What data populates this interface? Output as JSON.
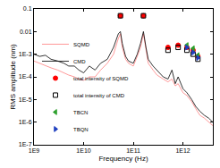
{
  "chart_data": {
    "type": "line",
    "x_label": "Frequency (Hz)",
    "y_label": "RMS amplitude (nm)",
    "log": true,
    "grid": false,
    "legend": "lower left",
    "xlim": [
      1000000000.0,
      4000000000000.0
    ],
    "ylim": [
      1e-07,
      0.1
    ],
    "xticks": [
      {
        "value": 1000000000.0,
        "label": "1E9"
      },
      {
        "value": 10000000000.0,
        "label": "1E10"
      },
      {
        "value": 100000000000.0,
        "label": "1E11"
      },
      {
        "value": 1000000000000.0,
        "label": "1E12"
      }
    ],
    "yticks": [
      {
        "value": 1e-07,
        "label": "1E-7"
      },
      {
        "value": 1e-06,
        "label": "1E-6"
      },
      {
        "value": 1e-05,
        "label": "1E-5"
      },
      {
        "value": 0.0001,
        "label": "1E-4"
      },
      {
        "value": 0.001,
        "label": "1E-3"
      },
      0.01,
      0.1
    ],
    "series": [
      {
        "name": "SQMD",
        "type": "line",
        "color": "#ff7f7f",
        "line_style": "solid",
        "x": [
          1000000000.0,
          1300000000.0,
          1700000000.0,
          2200000000.0,
          3000000000.0,
          4000000000.0,
          5000000000.0,
          6500000000.0,
          8000000000.0,
          10000000000.0,
          13000000000.0,
          17000000000.0,
          22000000000.0,
          30000000000.0,
          40000000000.0,
          50000000000.0,
          55000000000.0,
          60000000000.0,
          70000000000.0,
          80000000000.0,
          100000000000.0,
          120000000000.0,
          140000000000.0,
          160000000000.0,
          180000000000.0,
          200000000000.0,
          250000000000.0,
          300000000000.0,
          400000000000.0,
          500000000000.0,
          600000000000.0,
          700000000000.0,
          800000000000.0,
          1000000000000.0,
          1200000000000.0,
          1500000000000.0,
          1800000000000.0,
          2200000000000.0,
          2700000000000.0,
          3300000000000.0,
          4000000000000.0
        ],
        "values": [
          0.0005,
          0.0004,
          0.0003,
          0.00025,
          0.0002,
          0.00015,
          0.00012,
          0.0001,
          8e-05,
          7e-05,
          0.0001,
          0.0001,
          0.0002,
          0.0004,
          0.001,
          0.005,
          0.008,
          0.002,
          0.0006,
          0.0004,
          0.0003,
          0.0008,
          0.002,
          0.008,
          0.0015,
          0.0004,
          0.0002,
          0.00012,
          8e-05,
          6e-05,
          8e-05,
          4e-05,
          5e-05,
          2e-05,
          1.5e-05,
          8e-06,
          4e-06,
          2e-06,
          1.5e-06,
          1e-06,
          7e-07
        ]
      },
      {
        "name": "CMD",
        "type": "line",
        "color": "#000000",
        "line_style": "solid",
        "x": [
          1000000000.0,
          1300000000.0,
          1700000000.0,
          2200000000.0,
          3000000000.0,
          4000000000.0,
          5000000000.0,
          6500000000.0,
          8000000000.0,
          10000000000.0,
          13000000000.0,
          17000000000.0,
          22000000000.0,
          30000000000.0,
          40000000000.0,
          50000000000.0,
          55000000000.0,
          60000000000.0,
          70000000000.0,
          80000000000.0,
          100000000000.0,
          120000000000.0,
          140000000000.0,
          160000000000.0,
          180000000000.0,
          200000000000.0,
          250000000000.0,
          300000000000.0,
          400000000000.0,
          500000000000.0,
          600000000000.0,
          700000000000.0,
          800000000000.0,
          1000000000000.0,
          1200000000000.0,
          1500000000000.0,
          1800000000000.0,
          2200000000000.0,
          2700000000000.0,
          3300000000000.0,
          4000000000000.0
        ],
        "values": [
          0.001,
          0.0008,
          0.0009,
          0.0006,
          0.0005,
          0.0004,
          0.0003,
          0.0003,
          0.0002,
          0.00015,
          0.0003,
          0.0002,
          0.0004,
          0.0006,
          0.002,
          0.008,
          0.01,
          0.003,
          0.0008,
          0.0005,
          0.0004,
          0.001,
          0.003,
          0.01,
          0.002,
          0.0006,
          0.0003,
          0.0002,
          0.0001,
          8e-05,
          0.0002,
          5e-05,
          0.0001,
          3e-05,
          2e-05,
          1e-05,
          5e-06,
          3e-06,
          2e-06,
          1.5e-06,
          1e-06
        ]
      },
      {
        "name": "total intensity of SQMD",
        "type": "scatter",
        "color": "#ff0000",
        "marker": "circle",
        "x": [
          55000000000.0,
          160000000000.0,
          500000000000.0,
          800000000000.0,
          1200000000000.0,
          1600000000000.0,
          2000000000000.0
        ],
        "values": [
          0.05,
          0.05,
          0.002,
          0.0025,
          0.002,
          0.0015,
          0.0008
        ]
      },
      {
        "name": "total intensity of CMD",
        "type": "scatter",
        "color": "#000000",
        "marker": "square-open",
        "x": [
          55000000000.0,
          160000000000.0,
          500000000000.0,
          800000000000.0,
          1200000000000.0,
          1600000000000.0,
          2000000000000.0
        ],
        "values": [
          0.05,
          0.05,
          0.0015,
          0.002,
          0.0015,
          0.001,
          0.0006
        ]
      },
      {
        "name": "TBCN",
        "type": "scatter",
        "color": "#2ca02c",
        "marker": "triangle-left",
        "x": [
          1200000000000.0,
          1600000000000.0,
          2000000000000.0
        ],
        "values": [
          0.0025,
          0.0018,
          0.0009
        ]
      },
      {
        "name": "TBQN",
        "type": "scatter",
        "color": "#1f3fbf",
        "marker": "triangle-right",
        "x": [
          1200000000000.0,
          1600000000000.0,
          2000000000000.0
        ],
        "values": [
          0.002,
          0.0012,
          0.0007
        ]
      }
    ]
  }
}
